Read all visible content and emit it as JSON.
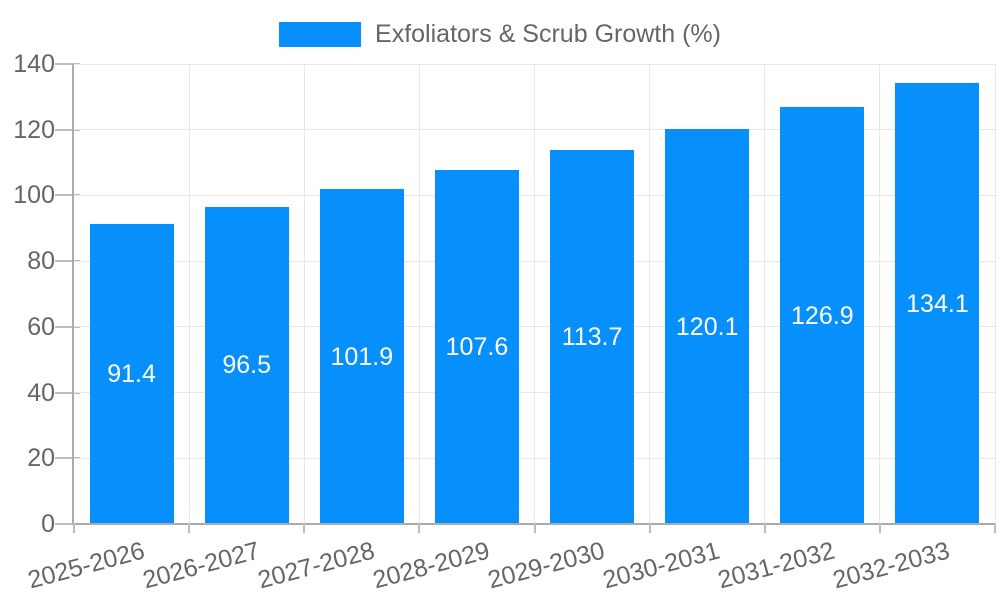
{
  "chart_data": {
    "type": "bar",
    "title": "Exfoliators & Scrub Growth (%)",
    "categories": [
      "2025-2026",
      "2026-2027",
      "2027-2028",
      "2028-2029",
      "2029-2030",
      "2030-2031",
      "2031-2032",
      "2032-2033"
    ],
    "values": [
      91.4,
      96.5,
      101.9,
      107.6,
      113.7,
      120.1,
      126.9,
      134.1
    ],
    "xlabel": "",
    "ylabel": "",
    "ylim": [
      0,
      140
    ],
    "yticks": [
      0,
      20,
      40,
      60,
      80,
      100,
      120,
      140
    ],
    "grid": true,
    "legend_position": "top-center",
    "x_label_rotation_deg": -15,
    "bar_color": "#0790FB",
    "value_label_color": "#FFFFFF",
    "axis_text_color": "#666666",
    "gridline_color": "#E7E7E7",
    "axis_line_color": "#ABABAB",
    "tick_color": "#BDBDBD"
  }
}
